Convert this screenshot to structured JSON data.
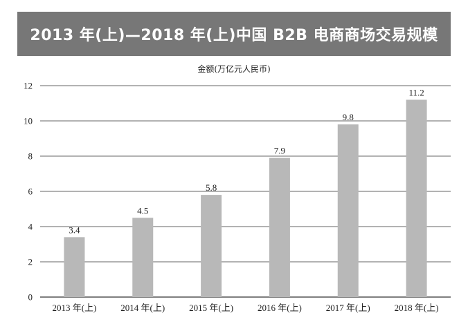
{
  "chart_data": {
    "type": "bar",
    "title": "2013 年(上)—2018 年(上)中国 B2B 电商商场交易规模",
    "ylabel": "金额(万亿元人民币)",
    "xlabel": "",
    "categories": [
      "2013 年(上)",
      "2014 年(上)",
      "2015 年(上)",
      "2016 年(上)",
      "2017 年(上)",
      "2018 年(上)"
    ],
    "values": [
      3.4,
      4.5,
      5.8,
      7.9,
      9.8,
      11.2
    ],
    "data_labels": [
      "3.4",
      "4.5",
      "5.8",
      "7.9",
      "9.8",
      "11.2"
    ],
    "yticks": [
      "0",
      "2",
      "4",
      "6",
      "8",
      "10",
      "12"
    ],
    "ylim": [
      0,
      12
    ],
    "grid": true,
    "legend": "none"
  },
  "colors": {
    "title_background": "#777777",
    "title_text": "#ffffff",
    "bar": "#b8b8b8",
    "gridline": "#333333",
    "text": "#222222"
  }
}
